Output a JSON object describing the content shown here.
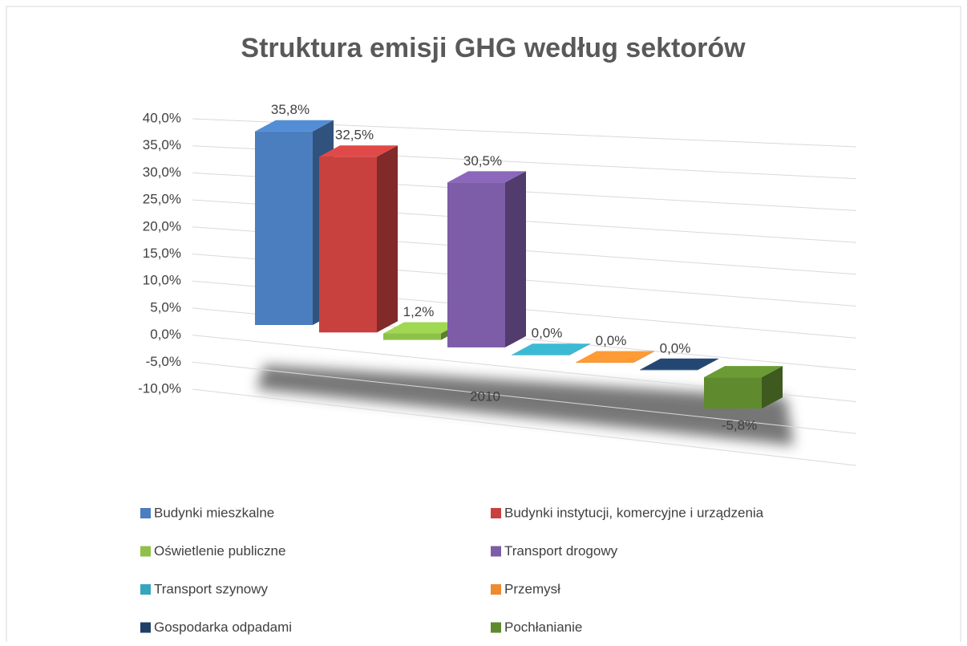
{
  "chart_data": {
    "type": "bar3d",
    "title": "Struktura emisji GHG według sektorów",
    "categories": [
      "2010"
    ],
    "series": [
      {
        "name": "Budynki mieszkalne",
        "color": "#4a7ebf",
        "values": [
          35.8
        ],
        "value_labels": [
          "35,8%"
        ]
      },
      {
        "name": "Budynki instytucji, komercyjne i urządzenia",
        "color": "#c8413f",
        "values": [
          32.5
        ],
        "value_labels": [
          "32,5%"
        ]
      },
      {
        "name": "Oświetlenie publiczne",
        "color": "#8fc14a",
        "values": [
          1.2
        ],
        "value_labels": [
          "1,2%"
        ]
      },
      {
        "name": "Transport drogowy",
        "color": "#7d5ca8",
        "values": [
          30.5
        ],
        "value_labels": [
          "30,5%"
        ]
      },
      {
        "name": "Transport szynowy",
        "color": "#35a6bd",
        "values": [
          0.0
        ],
        "value_labels": [
          "0,0%"
        ]
      },
      {
        "name": "Przemysł",
        "color": "#ef8a2e",
        "values": [
          0.0
        ],
        "value_labels": [
          "0,0%"
        ]
      },
      {
        "name": "Gospodarka odpadami",
        "color": "#1f3f66",
        "values": [
          0.0
        ],
        "value_labels": [
          "0,0%"
        ]
      },
      {
        "name": "Pochłanianie",
        "color": "#5f8a2e",
        "values": [
          -5.8
        ],
        "value_labels": [
          "-5,8%"
        ]
      }
    ],
    "ylim": [
      -10,
      40
    ],
    "yticks": [
      {
        "value": -10,
        "label": "-10,0%"
      },
      {
        "value": -5,
        "label": "-5,0%"
      },
      {
        "value": 0,
        "label": "0,0%"
      },
      {
        "value": 5,
        "label": "5,0%"
      },
      {
        "value": 10,
        "label": "10,0%"
      },
      {
        "value": 15,
        "label": "15,0%"
      },
      {
        "value": 20,
        "label": "20,0%"
      },
      {
        "value": 25,
        "label": "25,0%"
      },
      {
        "value": 30,
        "label": "30,0%"
      },
      {
        "value": 35,
        "label": "35,0%"
      },
      {
        "value": 40,
        "label": "40,0%"
      }
    ],
    "grid": true,
    "legend": "bottom"
  }
}
